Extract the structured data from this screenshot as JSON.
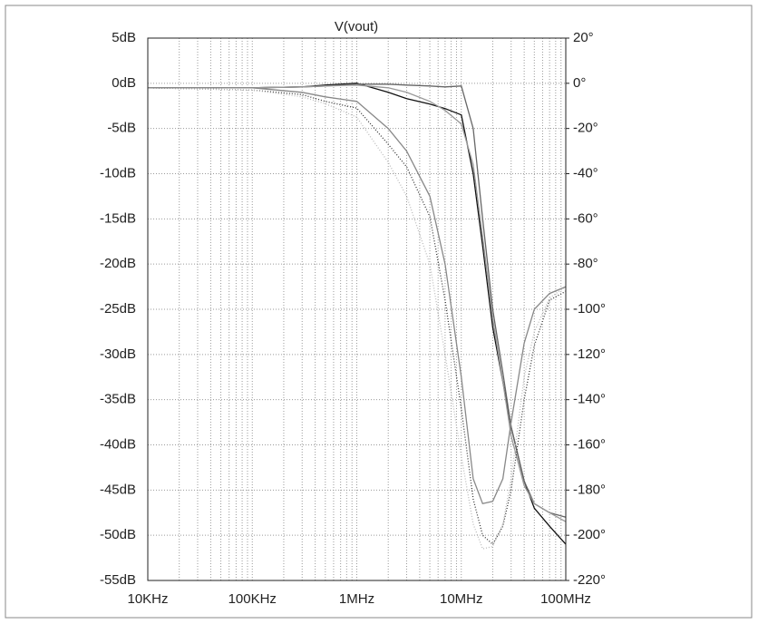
{
  "chart_data": {
    "type": "line",
    "title": "V(vout)",
    "xlog": true,
    "grid": true,
    "xlim": [
      10000,
      100000000
    ],
    "xticks": [
      {
        "value": 10000,
        "label": "10KHz"
      },
      {
        "value": 100000,
        "label": "100KHz"
      },
      {
        "value": 1000000,
        "label": "1MHz"
      },
      {
        "value": 10000000,
        "label": "10MHz"
      },
      {
        "value": 100000000,
        "label": "100MHz"
      }
    ],
    "xminorticks": [
      20000,
      30000,
      40000,
      50000,
      60000,
      70000,
      80000,
      90000,
      200000,
      300000,
      400000,
      500000,
      600000,
      700000,
      800000,
      900000,
      2000000,
      3000000,
      4000000,
      5000000,
      6000000,
      7000000,
      8000000,
      9000000,
      20000000,
      30000000,
      40000000,
      50000000,
      60000000,
      70000000,
      80000000,
      90000000
    ],
    "ylim": [
      -55,
      5
    ],
    "yticks": [
      {
        "value": 5,
        "label": "5dB"
      },
      {
        "value": 0,
        "label": "0dB"
      },
      {
        "value": -5,
        "label": "-5dB"
      },
      {
        "value": -10,
        "label": "-10dB"
      },
      {
        "value": -15,
        "label": "-15dB"
      },
      {
        "value": -20,
        "label": "-20dB"
      },
      {
        "value": -25,
        "label": "-25dB"
      },
      {
        "value": -30,
        "label": "-30dB"
      },
      {
        "value": -35,
        "label": "-35dB"
      },
      {
        "value": -40,
        "label": "-40dB"
      },
      {
        "value": -45,
        "label": "-45dB"
      },
      {
        "value": -50,
        "label": "-50dB"
      },
      {
        "value": -55,
        "label": "-55dB"
      }
    ],
    "y2lim": [
      -220,
      20
    ],
    "y2ticks": [
      {
        "value": 20,
        "label": "20°"
      },
      {
        "value": 0,
        "label": "0°"
      },
      {
        "value": -20,
        "label": "-20°"
      },
      {
        "value": -40,
        "label": "-40°"
      },
      {
        "value": -60,
        "label": "-60°"
      },
      {
        "value": -80,
        "label": "-80°"
      },
      {
        "value": -100,
        "label": "-100°"
      },
      {
        "value": -120,
        "label": "-120°"
      },
      {
        "value": -140,
        "label": "-140°"
      },
      {
        "value": -160,
        "label": "-160°"
      },
      {
        "value": -180,
        "label": "-180°"
      },
      {
        "value": -200,
        "label": "-200°"
      },
      {
        "value": -220,
        "label": "-220°"
      }
    ],
    "x": [
      10000,
      100000,
      300000,
      500000,
      1000000,
      2000000,
      3000000,
      5000000,
      7000000,
      10000000,
      13000000,
      16000000,
      20000000,
      25000000,
      30000000,
      40000000,
      50000000,
      70000000,
      100000000
    ],
    "series": [
      {
        "color": "#111111",
        "dash": "none",
        "values": [
          -0.5,
          -0.5,
          -0.4,
          -0.2,
          0,
          -1,
          -1.7,
          -2.3,
          -2.8,
          -3.5,
          -10,
          -18,
          -27,
          -33,
          -38,
          -44,
          -47,
          -49,
          -51
        ]
      },
      {
        "color": "#666666",
        "dash": "none",
        "values": [
          -0.5,
          -0.5,
          -0.4,
          -0.3,
          -0.1,
          -0.1,
          -0.2,
          -0.3,
          -0.4,
          -0.3,
          -5,
          -15,
          -25,
          -32,
          -38,
          -44,
          -46.5,
          -47.5,
          -48
        ]
      },
      {
        "color": "#999999",
        "dash": "none",
        "values": [
          -0.5,
          -0.5,
          -0.4,
          -0.3,
          -0.2,
          -0.5,
          -1,
          -2,
          -3,
          -4.5,
          -9,
          -17,
          -26,
          -33,
          -39,
          -44.5,
          -46.5,
          -47.5,
          -48.5
        ]
      },
      {
        "color": "#333333",
        "dash": "1,2",
        "axis": "y2",
        "values": [
          -2,
          -3,
          -5,
          -8,
          -11,
          -27,
          -37,
          -59,
          -96,
          -144,
          -184,
          -200,
          -204,
          -196,
          -180,
          -140,
          -116,
          -96,
          -92
        ]
      },
      {
        "color": "#bbbbbb",
        "dash": "1,2",
        "axis": "y2",
        "values": [
          -2,
          -3,
          -6,
          -9,
          -15,
          -35,
          -50,
          -80,
          -120,
          -165,
          -195,
          -206,
          -205,
          -195,
          -175,
          -130,
          -110,
          -95,
          -90
        ]
      },
      {
        "color": "#888888",
        "dash": "none",
        "axis": "y2",
        "values": [
          -2,
          -2,
          -4,
          -6,
          -8,
          -20,
          -30,
          -50,
          -80,
          -130,
          -175,
          -186,
          -185,
          -175,
          -150,
          -115,
          -100,
          -93,
          -90
        ]
      }
    ]
  }
}
